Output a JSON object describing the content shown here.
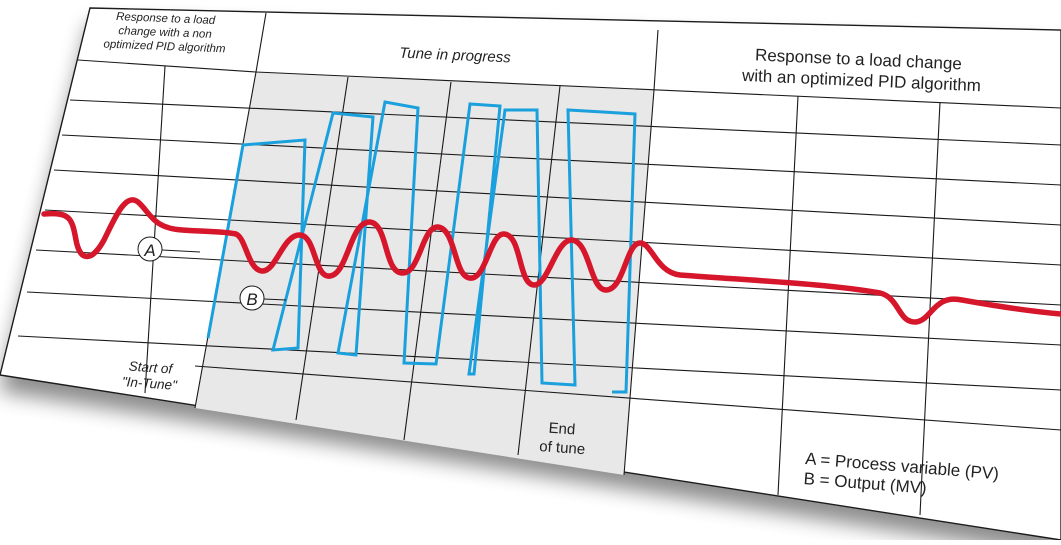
{
  "headers": {
    "left": [
      "Response to a load",
      "change with a non",
      "optimized PID algorithm"
    ],
    "middle": "Tune in progress",
    "right": [
      "Response to a load change",
      "with an optimized PID algorithm"
    ]
  },
  "annotations": {
    "start": [
      "Start of",
      "\"In-Tune\""
    ],
    "end": [
      "End",
      "of tune"
    ],
    "curve_a": "A",
    "curve_b": "B"
  },
  "legend": {
    "line1": "A = Process variable (PV)",
    "line2": "B = Output (MV)"
  },
  "colors": {
    "pv_curve": "#d5162b",
    "output_curve": "#1aa0dd",
    "tune_shade": "#e8e8e8",
    "grid": "#1a1a1a"
  }
}
